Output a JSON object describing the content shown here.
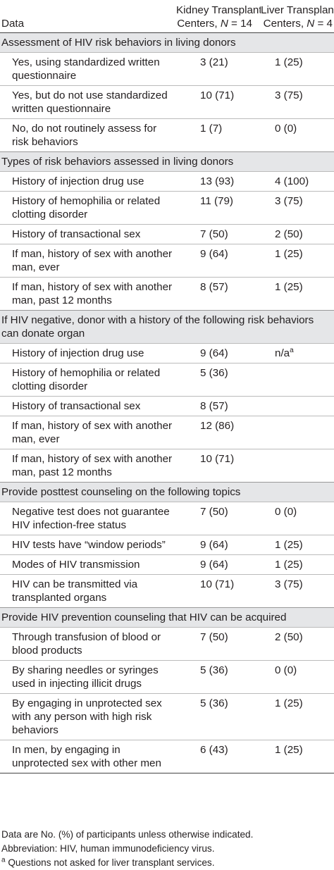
{
  "header": {
    "col1": "Data",
    "col2_line1": "Kidney Transplant",
    "col2_line2_prefix": "Centers, ",
    "col2_N": "N",
    "col2_line2_suffix": " = 14",
    "col3_line1": "Liver Transplant",
    "col3_line2_prefix": "Centers, ",
    "col3_N": "N",
    "col3_line2_suffix": " = 4"
  },
  "sections": [
    {
      "title": "Assessment of HIV risk behaviors in living donors",
      "rows": [
        {
          "label": "Yes, using standardized written questionnaire",
          "kidney": "3 (21)",
          "liver": "1 (25)"
        },
        {
          "label": "Yes, but do not use standardized written questionnaire",
          "kidney": "10 (71)",
          "liver": "3 (75)"
        },
        {
          "label": "No, do not routinely assess for risk behaviors",
          "kidney": "1 (7)",
          "liver": "0 (0)"
        }
      ]
    },
    {
      "title": "Types of risk behaviors assessed in living donors",
      "rows": [
        {
          "label": "History of injection drug use",
          "kidney": "13 (93)",
          "liver": "4 (100)"
        },
        {
          "label": "History of hemophilia or related clotting disorder",
          "kidney": "11 (79)",
          "liver": "3 (75)"
        },
        {
          "label": "History of transactional sex",
          "kidney": "7 (50)",
          "liver": "2 (50)"
        },
        {
          "label": "If man, history of sex with another man, ever",
          "kidney": "9 (64)",
          "liver": "1 (25)"
        },
        {
          "label": "If man, history of sex with another man, past 12 months",
          "kidney": "8 (57)",
          "liver": "1 (25)"
        }
      ]
    },
    {
      "title": "If HIV negative, donor with a history of the following risk behaviors can donate organ",
      "rows": [
        {
          "label": "History of injection drug use",
          "kidney": "9 (64)",
          "liver": "n/a",
          "liver_sup": "a"
        },
        {
          "label": "History of hemophilia or related clotting disorder",
          "kidney": "5 (36)",
          "liver": ""
        },
        {
          "label": "History of transactional sex",
          "kidney": "8 (57)",
          "liver": ""
        },
        {
          "label": "If man, history of sex with another man, ever",
          "kidney": "12 (86)",
          "liver": ""
        },
        {
          "label": "If man, history of sex with another man, past 12 months",
          "kidney": "10 (71)",
          "liver": ""
        }
      ]
    },
    {
      "title": "Provide posttest counseling on the following topics",
      "rows": [
        {
          "label": "Negative test does not guarantee HIV infection-free status",
          "kidney": "7 (50)",
          "liver": "0 (0)"
        },
        {
          "label": "HIV tests have “window periods”",
          "kidney": "9 (64)",
          "liver": "1 (25)"
        },
        {
          "label": "Modes of HIV transmission",
          "kidney": "9 (64)",
          "liver": "1 (25)"
        },
        {
          "label": "HIV can be transmitted via transplanted organs",
          "kidney": "10 (71)",
          "liver": "3 (75)"
        }
      ]
    },
    {
      "title": "Provide HIV prevention counseling that HIV can be acquired",
      "rows": [
        {
          "label": "Through transfusion of blood or blood products",
          "kidney": "7 (50)",
          "liver": "2 (50)"
        },
        {
          "label": "By sharing needles or syringes used in injecting illicit drugs",
          "kidney": "5 (36)",
          "liver": "0 (0)"
        },
        {
          "label": "By engaging in unprotected sex with any person with high risk behaviors",
          "kidney": "5 (36)",
          "liver": "1 (25)"
        },
        {
          "label": "In men, by engaging in unprotected sex with other men",
          "kidney": "6 (43)",
          "liver": "1 (25)"
        }
      ]
    }
  ],
  "notes": {
    "note1": "Data are No. (%) of participants unless otherwise indicated.",
    "note2": "Abbreviation: HIV, human immunodeficiency virus.",
    "note3_sup": "a",
    "note3_text": " Questions not asked for liver transplant services."
  }
}
